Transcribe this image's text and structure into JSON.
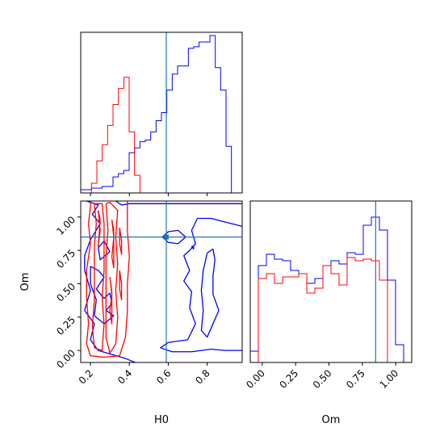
{
  "colors": {
    "series_a": "#0000ff",
    "series_b": "#ff0000",
    "truth": "#1f77b4",
    "axes": "#000000"
  },
  "chart_data": {
    "type": "corner",
    "parameters": [
      "H0",
      "Om"
    ],
    "truths": {
      "H0": 0.59,
      "Om": 0.85
    },
    "ranges": {
      "H0": [
        0.15,
        0.98
      ],
      "Om": [
        -0.09,
        1.12
      ]
    },
    "ticks": {
      "H0": {
        "values": [
          0.2,
          0.4,
          0.6,
          0.8
        ],
        "labels": [
          "0.2",
          "0.4",
          "0.6",
          "0.8"
        ]
      },
      "Om": {
        "values": [
          0.0,
          0.25,
          0.5,
          0.75,
          1.0
        ],
        "labels": [
          "0.00",
          "0.25",
          "0.50",
          "0.75",
          "1.00"
        ]
      }
    },
    "xlabels": {
      "H0": "H0",
      "Om": "Om"
    },
    "ylabels": {
      "Om": "Om"
    },
    "histograms": {
      "H0": {
        "bins": [
          0.15,
          0.1777,
          0.2053,
          0.233,
          0.2607,
          0.2883,
          0.316,
          0.3437,
          0.3713,
          0.399,
          0.4267,
          0.4543,
          0.482,
          0.5097,
          0.5373,
          0.565,
          0.5927,
          0.6203,
          0.648,
          0.6757,
          0.7033,
          0.731,
          0.7587,
          0.7863,
          0.814,
          0.8417,
          0.8693,
          0.897,
          0.9247,
          0.9523,
          0.98
        ],
        "series": [
          {
            "color": "blue",
            "values": [
              0.02,
              0.02,
              0.03,
              0.03,
              0.04,
              0.04,
              0.1,
              0.12,
              0.14,
              0.25,
              0.28,
              0.32,
              0.33,
              0.38,
              0.45,
              0.5,
              0.64,
              0.74,
              0.79,
              0.79,
              0.9,
              0.91,
              0.94,
              0.94,
              0.98,
              0.78,
              0.64,
              0.29,
              0.0,
              0.0
            ]
          },
          {
            "color": "red",
            "values": [
              0,
              0,
              0.06,
              0.2,
              0.3,
              0.42,
              0.55,
              0.65,
              0.72,
              0.38,
              0.11,
              0,
              0,
              0,
              0,
              0,
              0,
              0,
              0,
              0,
              0,
              0,
              0,
              0,
              0,
              0,
              0,
              0,
              0,
              0
            ]
          }
        ]
      },
      "Om": {
        "bins": [
          -0.09,
          -0.0295,
          0.031,
          0.0915,
          0.152,
          0.2125,
          0.273,
          0.3335,
          0.394,
          0.4545,
          0.515,
          0.5755,
          0.636,
          0.6965,
          0.757,
          0.8175,
          0.878,
          0.9385,
          0.999,
          1.0595,
          1.12
        ],
        "series": [
          {
            "color": "blue",
            "values": [
              0.07,
              0.6,
              0.67,
              0.64,
              0.63,
              0.57,
              0.55,
              0.49,
              0.52,
              0.6,
              0.63,
              0.61,
              0.68,
              0.67,
              0.85,
              0.9,
              0.82,
              0.51,
              0.11,
              0.0
            ]
          },
          {
            "color": "red",
            "values": [
              0,
              0.52,
              0.55,
              0.49,
              0.53,
              0.53,
              0.55,
              0.43,
              0.46,
              0.6,
              0.55,
              0.48,
              0.65,
              0.63,
              0.64,
              0.63,
              0.51,
              0.0,
              0,
              0
            ]
          }
        ]
      }
    },
    "contours_2d": [
      {
        "color": "blue",
        "levels": [
          [
            [
              0.18,
              1.12
            ],
            [
              0.24,
              1.09
            ],
            [
              0.21,
              1.02
            ],
            [
              0.25,
              0.95
            ],
            [
              0.2,
              0.83
            ],
            [
              0.17,
              0.71
            ],
            [
              0.17,
              0.6
            ],
            [
              0.2,
              0.45
            ],
            [
              0.17,
              0.3
            ],
            [
              0.22,
              0.2
            ],
            [
              0.2,
              0.08
            ],
            [
              0.24,
              0.0
            ],
            [
              0.31,
              -0.03
            ],
            [
              0.38,
              -0.06
            ],
            [
              0.43,
              -0.09
            ]
          ],
          [
            [
              0.33,
              1.12
            ],
            [
              0.36,
              1.09
            ],
            [
              0.4,
              1.1
            ],
            [
              0.98,
              1.1
            ]
          ],
          [
            [
              0.2,
              0.63
            ],
            [
              0.24,
              0.6
            ],
            [
              0.27,
              0.55
            ],
            [
              0.23,
              0.46
            ],
            [
              0.27,
              0.39
            ],
            [
              0.3,
              0.43
            ],
            [
              0.31,
              0.35
            ],
            [
              0.28,
              0.3
            ],
            [
              0.32,
              0.26
            ],
            [
              0.27,
              0.2
            ],
            [
              0.22,
              0.26
            ],
            [
              0.23,
              0.38
            ],
            [
              0.2,
              0.5
            ],
            [
              0.2,
              0.63
            ]
          ],
          [
            [
              0.27,
              0.82
            ],
            [
              0.3,
              0.74
            ],
            [
              0.25,
              0.68
            ],
            [
              0.24,
              0.77
            ],
            [
              0.27,
              0.82
            ]
          ],
          [
            [
              0.57,
              0.85
            ],
            [
              0.6,
              0.89
            ],
            [
              0.65,
              0.9
            ],
            [
              0.69,
              0.85
            ],
            [
              0.65,
              0.8
            ],
            [
              0.6,
              0.81
            ],
            [
              0.57,
              0.85
            ]
          ],
          [
            [
              0.98,
              0.93
            ],
            [
              0.9,
              0.96
            ],
            [
              0.82,
              0.99
            ],
            [
              0.75,
              0.99
            ],
            [
              0.72,
              0.9
            ],
            [
              0.74,
              0.8
            ],
            [
              0.71,
              0.75
            ],
            [
              0.68,
              0.71
            ],
            [
              0.71,
              0.6
            ],
            [
              0.68,
              0.52
            ],
            [
              0.72,
              0.44
            ],
            [
              0.71,
              0.32
            ],
            [
              0.74,
              0.2
            ],
            [
              0.7,
              0.08
            ],
            [
              0.6,
              0.06
            ],
            [
              0.56,
              0.02
            ],
            [
              0.62,
              -0.01
            ],
            [
              0.72,
              -0.01
            ],
            [
              0.82,
              0.01
            ],
            [
              0.89,
              0.0
            ],
            [
              0.98,
              0.0
            ]
          ],
          [
            [
              0.8,
              0.73
            ],
            [
              0.83,
              0.76
            ],
            [
              0.84,
              0.68
            ],
            [
              0.83,
              0.56
            ],
            [
              0.83,
              0.42
            ],
            [
              0.86,
              0.3
            ],
            [
              0.83,
              0.2
            ],
            [
              0.8,
              0.1
            ],
            [
              0.77,
              0.15
            ],
            [
              0.78,
              0.3
            ],
            [
              0.77,
              0.45
            ],
            [
              0.78,
              0.6
            ],
            [
              0.8,
              0.73
            ]
          ],
          [
            [
              0.72,
              0.78
            ],
            [
              0.73,
              0.76
            ],
            [
              0.73,
              0.78
            ],
            [
              0.72,
              0.78
            ]
          ]
        ]
      },
      {
        "color": "red",
        "levels": [
          [
            [
              0.2,
              1.12
            ],
            [
              0.2,
              1.08
            ],
            [
              0.19,
              0.95
            ],
            [
              0.2,
              0.8
            ],
            [
              0.18,
              0.6
            ],
            [
              0.18,
              0.4
            ],
            [
              0.19,
              0.2
            ],
            [
              0.18,
              0.05
            ],
            [
              0.2,
              -0.04
            ],
            [
              0.27,
              -0.05
            ],
            [
              0.35,
              -0.04
            ],
            [
              0.38,
              0.1
            ],
            [
              0.39,
              0.3
            ],
            [
              0.39,
              0.5
            ],
            [
              0.4,
              0.7
            ],
            [
              0.39,
              0.9
            ],
            [
              0.39,
              1.12
            ]
          ],
          [
            [
              0.22,
              1.1
            ],
            [
              0.23,
              0.95
            ],
            [
              0.22,
              0.78
            ],
            [
              0.22,
              0.6
            ],
            [
              0.22,
              0.38
            ],
            [
              0.21,
              0.18
            ],
            [
              0.22,
              0.02
            ],
            [
              0.26,
              0.0
            ],
            [
              0.27,
              0.2
            ],
            [
              0.26,
              0.4
            ],
            [
              0.27,
              0.6
            ],
            [
              0.27,
              0.78
            ],
            [
              0.27,
              0.95
            ],
            [
              0.26,
              1.1
            ],
            [
              0.22,
              1.1
            ]
          ],
          [
            [
              0.28,
              1.1
            ],
            [
              0.29,
              0.9
            ],
            [
              0.28,
              0.7
            ],
            [
              0.28,
              0.5
            ],
            [
              0.28,
              0.3
            ],
            [
              0.28,
              0.1
            ],
            [
              0.3,
              -0.02
            ],
            [
              0.33,
              0.05
            ],
            [
              0.34,
              0.25
            ],
            [
              0.33,
              0.45
            ],
            [
              0.34,
              0.65
            ],
            [
              0.33,
              0.85
            ],
            [
              0.34,
              1.05
            ],
            [
              0.3,
              1.11
            ],
            [
              0.28,
              1.1
            ]
          ],
          [
            [
              0.24,
              1.05
            ],
            [
              0.25,
              0.9
            ],
            [
              0.24,
              0.78
            ],
            [
              0.25,
              0.98
            ],
            [
              0.24,
              1.05
            ]
          ],
          [
            [
              0.31,
              0.98
            ],
            [
              0.32,
              0.85
            ],
            [
              0.31,
              0.7
            ],
            [
              0.32,
              0.62
            ],
            [
              0.32,
              0.9
            ],
            [
              0.31,
              0.98
            ]
          ],
          [
            [
              0.3,
              0.55
            ],
            [
              0.31,
              0.42
            ],
            [
              0.3,
              0.3
            ],
            [
              0.31,
              0.2
            ],
            [
              0.31,
              0.44
            ],
            [
              0.3,
              0.55
            ]
          ],
          [
            [
              0.35,
              0.92
            ],
            [
              0.36,
              0.82
            ],
            [
              0.36,
              0.72
            ],
            [
              0.35,
              0.8
            ],
            [
              0.35,
              0.92
            ]
          ],
          [
            [
              0.35,
              0.6
            ],
            [
              0.36,
              0.5
            ],
            [
              0.36,
              0.38
            ],
            [
              0.35,
              0.46
            ],
            [
              0.35,
              0.6
            ]
          ]
        ]
      }
    ]
  }
}
